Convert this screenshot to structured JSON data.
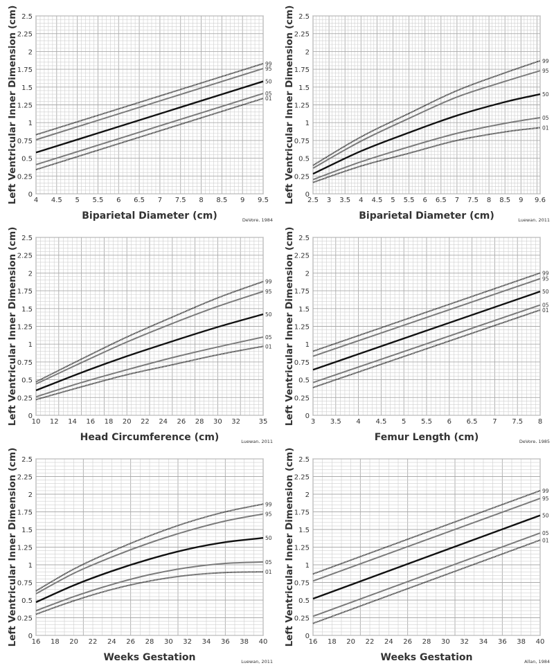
{
  "styles": {
    "99": {
      "color": "#222222",
      "dash": "1.2 0.8",
      "width": 2
    },
    "95": {
      "color": "#7a7a7a",
      "dash": "",
      "width": 2
    },
    "50": {
      "color": "#111111",
      "dash": "",
      "width": 2.4
    },
    "05": {
      "color": "#7a7a7a",
      "dash": "",
      "width": 2
    },
    "01": {
      "color": "#222222",
      "dash": "1.2 0.8",
      "width": 2
    }
  },
  "chart_data": [
    {
      "type": "line",
      "xlabel": "Biparietal Diameter (cm)",
      "ylabel": "Left Ventricular Inner  Dimension (cm)",
      "source": "DeVore, 1984",
      "xlim": [
        4,
        9.5
      ],
      "ylim": [
        0,
        2.5
      ],
      "xticks": [
        "4",
        "4.5",
        "5",
        "5.5",
        "6",
        "6.5",
        "7",
        "7.5",
        "8",
        "8.5",
        "9",
        "9.5"
      ],
      "yticks": [
        "0",
        "0.25",
        "0.5",
        "0.75",
        "1",
        "1.25",
        "1.5",
        "1.75",
        "2",
        "2.25",
        "2.5"
      ],
      "x_minor": 0.1,
      "y_minor": 0.05,
      "grid": true,
      "x": [
        4,
        9.5
      ],
      "series": [
        {
          "name": "99",
          "values": [
            0.83,
            1.83
          ]
        },
        {
          "name": "95",
          "values": [
            0.76,
            1.76
          ]
        },
        {
          "name": "50",
          "values": [
            0.58,
            1.58
          ]
        },
        {
          "name": "05",
          "values": [
            0.41,
            1.41
          ]
        },
        {
          "name": "01",
          "values": [
            0.34,
            1.34
          ]
        }
      ]
    },
    {
      "type": "line",
      "xlabel": "Biparietal Diameter (cm)",
      "ylabel": "Left Ventricular Inner Dimension (cm)",
      "source": "Luewan, 2011",
      "xlim": [
        2.5,
        9.6
      ],
      "ylim": [
        0,
        2.5
      ],
      "xticks": [
        "2.5",
        "3",
        "3.5",
        "4",
        "4.5",
        "5",
        "5.5",
        "6",
        "6.5",
        "7",
        "7.5",
        "8",
        "8.5",
        "9",
        "9.6"
      ],
      "yticks": [
        "0",
        "0.25",
        "0.5",
        "0.75",
        "1",
        "1.25",
        "1.5",
        "1.75",
        "2",
        "2.25",
        "2.5"
      ],
      "x_minor": 0.1,
      "y_minor": 0.05,
      "grid": true,
      "x": [
        2.5,
        4,
        5.5,
        7,
        8.5,
        9.6
      ],
      "series": [
        {
          "name": "99",
          "values": [
            0.4,
            0.8,
            1.13,
            1.45,
            1.7,
            1.87
          ]
        },
        {
          "name": "95",
          "values": [
            0.36,
            0.74,
            1.06,
            1.36,
            1.58,
            1.73
          ]
        },
        {
          "name": "50",
          "values": [
            0.28,
            0.6,
            0.86,
            1.1,
            1.29,
            1.4
          ]
        },
        {
          "name": "05",
          "values": [
            0.2,
            0.45,
            0.66,
            0.85,
            0.99,
            1.07
          ]
        },
        {
          "name": "01",
          "values": [
            0.16,
            0.39,
            0.57,
            0.75,
            0.87,
            0.93
          ]
        }
      ]
    },
    {
      "type": "line",
      "xlabel": "Head Circumference (cm)",
      "ylabel": "Left Ventricular Inner Dimension (cm)",
      "source": "Luewan, 2011",
      "xlim": [
        10,
        35
      ],
      "ylim": [
        0,
        2.5
      ],
      "xticks": [
        "10",
        "12",
        "14",
        "16",
        "18",
        "20",
        "22",
        "24",
        "26",
        "28",
        "30",
        "32",
        "35"
      ],
      "yticks": [
        "0",
        "0.25",
        "0.5",
        "0.75",
        "1",
        "1.25",
        "1.5",
        "1.75",
        "2",
        "2.25",
        "2.5"
      ],
      "x_minor": 0.5,
      "y_minor": 0.05,
      "grid": true,
      "x": [
        10,
        15,
        20,
        25,
        30,
        35
      ],
      "series": [
        {
          "name": "99",
          "values": [
            0.47,
            0.79,
            1.1,
            1.38,
            1.65,
            1.88
          ]
        },
        {
          "name": "95",
          "values": [
            0.44,
            0.74,
            1.03,
            1.29,
            1.53,
            1.74
          ]
        },
        {
          "name": "50",
          "values": [
            0.35,
            0.6,
            0.83,
            1.04,
            1.24,
            1.42
          ]
        },
        {
          "name": "05",
          "values": [
            0.26,
            0.46,
            0.64,
            0.81,
            0.96,
            1.1
          ]
        },
        {
          "name": "01",
          "values": [
            0.22,
            0.4,
            0.57,
            0.71,
            0.85,
            0.97
          ]
        }
      ]
    },
    {
      "type": "line",
      "xlabel": "Femur Length (cm)",
      "ylabel": "Left Ventricular Inner Dimension (cm)",
      "source": "DeVore, 1985",
      "xlim": [
        3,
        8
      ],
      "ylim": [
        0,
        2.5
      ],
      "xticks": [
        "3",
        "3.5",
        "4",
        "4.5",
        "5",
        "5.5",
        "6",
        "6.5",
        "7",
        "7.5",
        "8"
      ],
      "yticks": [
        "0",
        "0.25",
        "0.5",
        "0.75",
        "1",
        "1.25",
        "1.5",
        "1.75",
        "2",
        "2.25",
        "2.5"
      ],
      "x_minor": 0.1,
      "y_minor": 0.05,
      "grid": true,
      "x": [
        3,
        8
      ],
      "series": [
        {
          "name": "99",
          "values": [
            0.9,
            2.0
          ]
        },
        {
          "name": "95",
          "values": [
            0.83,
            1.92
          ]
        },
        {
          "name": "50",
          "values": [
            0.64,
            1.74
          ]
        },
        {
          "name": "05",
          "values": [
            0.46,
            1.55
          ]
        },
        {
          "name": "01",
          "values": [
            0.39,
            1.48
          ]
        }
      ]
    },
    {
      "type": "line",
      "xlabel": "Weeks Gestation",
      "ylabel": "Left Ventricular Inner Dimension (cm)",
      "source": "Luewan, 2011",
      "xlim": [
        16,
        40
      ],
      "ylim": [
        0,
        2.5
      ],
      "xticks": [
        "16",
        "18",
        "20",
        "22",
        "24",
        "26",
        "28",
        "30",
        "32",
        "34",
        "36",
        "38",
        "40"
      ],
      "yticks": [
        "0",
        "0.25",
        "0.5",
        "0.75",
        "1",
        "1.25",
        "1.5",
        "1.75",
        "2",
        "2.25",
        "2.5"
      ],
      "x_minor": 1,
      "y_minor": 0.05,
      "grid": true,
      "x": [
        16,
        20,
        24,
        28,
        32,
        36,
        40
      ],
      "series": [
        {
          "name": "99",
          "values": [
            0.63,
            0.94,
            1.19,
            1.41,
            1.6,
            1.75,
            1.86
          ]
        },
        {
          "name": "95",
          "values": [
            0.59,
            0.88,
            1.11,
            1.31,
            1.48,
            1.62,
            1.72
          ]
        },
        {
          "name": "50",
          "values": [
            0.47,
            0.71,
            0.91,
            1.08,
            1.22,
            1.32,
            1.38
          ]
        },
        {
          "name": "05",
          "values": [
            0.35,
            0.55,
            0.72,
            0.86,
            0.96,
            1.02,
            1.04
          ]
        },
        {
          "name": "01",
          "values": [
            0.3,
            0.49,
            0.65,
            0.77,
            0.85,
            0.89,
            0.9
          ]
        }
      ]
    },
    {
      "type": "line",
      "xlabel": "Weeks Gestation",
      "ylabel": "Left Ventricular Inner Dimension (cm)",
      "source": "Allan, 1984",
      "xlim": [
        16,
        40
      ],
      "ylim": [
        0,
        2.5
      ],
      "xticks": [
        "16",
        "18",
        "20",
        "22",
        "24",
        "26",
        "28",
        "30",
        "32",
        "34",
        "36",
        "38",
        "40"
      ],
      "yticks": [
        "0",
        "0.25",
        "0.5",
        "0.75",
        "1",
        "1.25",
        "1.5",
        "1.75",
        "2",
        "2.25",
        "2.5"
      ],
      "x_minor": 1,
      "y_minor": 0.05,
      "grid": true,
      "x": [
        16,
        40
      ],
      "series": [
        {
          "name": "99",
          "values": [
            0.87,
            2.05
          ]
        },
        {
          "name": "95",
          "values": [
            0.77,
            1.94
          ]
        },
        {
          "name": "50",
          "values": [
            0.52,
            1.7
          ]
        },
        {
          "name": "05",
          "values": [
            0.27,
            1.45
          ]
        },
        {
          "name": "01",
          "values": [
            0.17,
            1.35
          ]
        }
      ]
    }
  ]
}
